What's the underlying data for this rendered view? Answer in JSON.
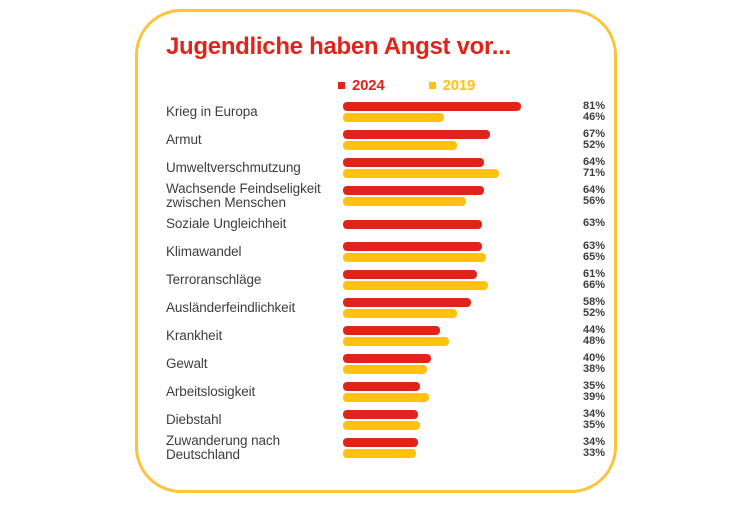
{
  "theme": {
    "red": "#E2231A",
    "yellow": "#FFC20E",
    "card_border": "#FCC43C",
    "text": "#3F3E3E",
    "background": "#FFFFFF"
  },
  "chart_data": {
    "type": "bar",
    "orientation": "horizontal",
    "title": "Jugendliche haben Angst vor...",
    "unit": "%",
    "value_range": [
      0,
      100
    ],
    "grid": false,
    "legend_position": "top",
    "categories": [
      "Krieg in Europa",
      "Armut",
      "Umweltverschmutzung",
      "Wachsende Feindseligkeit zwischen Menschen",
      "Soziale Ungleichheit",
      "Klimawandel",
      "Terroranschläge",
      "Ausländerfeindlichkeit",
      "Krankheit",
      "Gewalt",
      "Arbeitslosigkeit",
      "Diebstahl",
      "Zuwanderung nach Deutschland"
    ],
    "series": [
      {
        "name": "2024",
        "color": "#E2231A",
        "values": [
          81,
          67,
          64,
          64,
          63,
          63,
          61,
          58,
          44,
          40,
          35,
          34,
          34
        ]
      },
      {
        "name": "2019",
        "color": "#FFC20E",
        "values": [
          46,
          52,
          71,
          56,
          null,
          65,
          66,
          52,
          48,
          38,
          39,
          35,
          33
        ]
      }
    ]
  }
}
